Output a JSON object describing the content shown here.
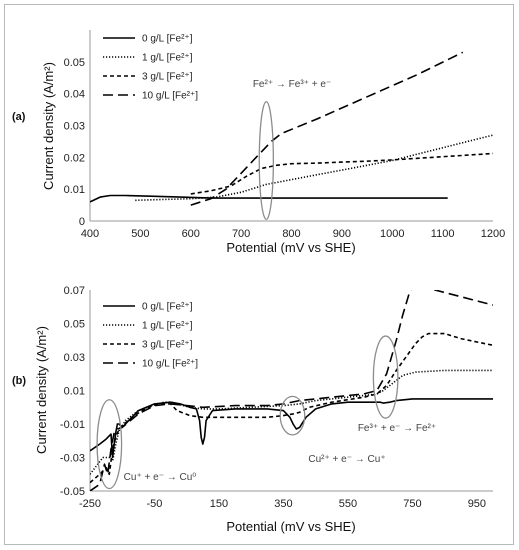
{
  "chart_data": [
    {
      "type": "line",
      "panel_label": "(a)",
      "xlabel": "Potential (mV vs SHE)",
      "ylabel": "Current density (A/m²)",
      "xlim": [
        400,
        1200
      ],
      "ylim": [
        0,
        0.06
      ],
      "xticks": [
        400,
        500,
        600,
        700,
        800,
        900,
        1000,
        1100,
        1200
      ],
      "yticks": [
        "0",
        "0.01",
        "0.02",
        "0.03",
        "0.04",
        "0.05"
      ],
      "ytick_values": [
        0,
        0.01,
        0.02,
        0.03,
        0.04,
        0.05
      ],
      "grid": false,
      "legend_position": "top-left",
      "series": [
        {
          "name": "0 g/L [Fe²⁺]",
          "dash": "solid",
          "x": [
            400,
            420,
            440,
            470,
            520,
            580,
            640,
            700,
            800,
            900,
            1000,
            1110
          ],
          "y": [
            0.006,
            0.0075,
            0.008,
            0.008,
            0.0078,
            0.0075,
            0.0072,
            0.0072,
            0.0072,
            0.0072,
            0.0072,
            0.0072
          ]
        },
        {
          "name": "1 g/L [Fe²⁺]",
          "dash": "dotted",
          "x": [
            490,
            550,
            600,
            650,
            700,
            750,
            800,
            850,
            900,
            950,
            1000,
            1050,
            1100,
            1150,
            1200
          ],
          "y": [
            0.0065,
            0.0068,
            0.007,
            0.0075,
            0.009,
            0.0115,
            0.013,
            0.0145,
            0.016,
            0.0175,
            0.019,
            0.021,
            0.023,
            0.025,
            0.027
          ]
        },
        {
          "name": "3 g/L [Fe²⁺]",
          "dash": "short-dash",
          "x": [
            600,
            640,
            680,
            710,
            740,
            770,
            800,
            850,
            900,
            950,
            1000,
            1050,
            1100,
            1150,
            1200
          ],
          "y": [
            0.0085,
            0.0095,
            0.011,
            0.014,
            0.0165,
            0.0175,
            0.018,
            0.0182,
            0.0185,
            0.0188,
            0.0192,
            0.0197,
            0.0202,
            0.0207,
            0.0212
          ]
        },
        {
          "name": "10 g/L [Fe²⁺]",
          "dash": "long-dash",
          "x": [
            600,
            640,
            670,
            700,
            730,
            760,
            780,
            850,
            950,
            1050,
            1140
          ],
          "y": [
            0.005,
            0.007,
            0.01,
            0.015,
            0.02,
            0.025,
            0.0275,
            0.032,
            0.039,
            0.046,
            0.053
          ]
        }
      ],
      "annotations": [
        {
          "text": "Fe²⁺ → Fe³⁺ + e⁻",
          "ellipse_center": [
            750,
            0.019
          ],
          "ellipse_radius": [
            14,
            0.0185
          ]
        }
      ]
    },
    {
      "type": "line",
      "panel_label": "(b)",
      "xlabel": "Potential (mV vs SHE)",
      "ylabel": "Current density (A/m²)",
      "xlim": [
        -250,
        1000
      ],
      "ylim": [
        -0.05,
        0.07
      ],
      "xticks": [
        "-250",
        "-50",
        "150",
        "350",
        "550",
        "750",
        "950"
      ],
      "xtick_values": [
        -250,
        -50,
        150,
        350,
        550,
        750,
        950
      ],
      "yticks": [
        "-0.05",
        "-0.03",
        "-0.01",
        "0.01",
        "0.03",
        "0.05",
        "0.07"
      ],
      "ytick_values": [
        -0.05,
        -0.03,
        -0.01,
        0.01,
        0.03,
        0.05,
        0.07
      ],
      "grid": false,
      "legend_position": "top-left",
      "series": [
        {
          "name": "0 g/L [Fe²⁺]",
          "dash": "solid",
          "x": [
            -250,
            -220,
            -200,
            -185,
            -180,
            -175,
            -170,
            -165,
            -160,
            -155,
            -150,
            -120,
            -100,
            -50,
            0,
            30,
            60,
            80,
            90,
            95,
            100,
            105,
            110,
            130,
            200,
            300,
            350,
            370,
            380,
            390,
            400,
            420,
            450,
            500,
            550,
            600,
            650,
            660,
            680,
            700,
            750,
            800,
            850,
            900,
            1000
          ],
          "y": [
            -0.026,
            -0.022,
            -0.019,
            -0.016,
            -0.03,
            -0.022,
            -0.015,
            -0.01,
            -0.01,
            -0.011,
            -0.012,
            -0.006,
            -0.002,
            0.002,
            0.003,
            0.002,
            0.0,
            -0.001,
            -0.008,
            -0.018,
            -0.022,
            -0.018,
            -0.008,
            -0.002,
            -0.001,
            -0.001,
            -0.002,
            -0.006,
            -0.01,
            -0.013,
            -0.012,
            -0.006,
            -0.001,
            0.002,
            0.003,
            0.003,
            0.003,
            0.0025,
            0.003,
            0.004,
            0.005,
            0.005,
            0.005,
            0.005,
            0.005
          ]
        },
        {
          "name": "1 g/L [Fe²⁺]",
          "dash": "dotted",
          "x": [
            -250,
            -210,
            -190,
            -180,
            -170,
            -160,
            -140,
            -100,
            -60,
            -20,
            0,
            20,
            60,
            100,
            150,
            250,
            350,
            400,
            450,
            500,
            550,
            600,
            640,
            660,
            680,
            700,
            720,
            760,
            850,
            1000
          ],
          "y": [
            -0.04,
            -0.03,
            -0.03,
            -0.032,
            -0.022,
            -0.014,
            -0.008,
            -0.002,
            0.001,
            0.003,
            0.003,
            0.002,
            0.0,
            -0.001,
            -0.001,
            0.0,
            0.001,
            0.002,
            0.004,
            0.005,
            0.006,
            0.007,
            0.008,
            0.01,
            0.013,
            0.016,
            0.019,
            0.021,
            0.022,
            0.022
          ]
        },
        {
          "name": "3 g/L [Fe²⁺]",
          "dash": "short-dash",
          "x": [
            -250,
            -220,
            -200,
            -190,
            -180,
            -170,
            -160,
            -150,
            -120,
            -80,
            -40,
            0,
            20,
            60,
            100,
            200,
            300,
            350,
            380,
            400,
            430,
            500,
            600,
            640,
            670,
            700,
            730,
            760,
            780,
            800,
            850,
            900,
            1000
          ],
          "y": [
            -0.045,
            -0.04,
            -0.036,
            -0.04,
            -0.025,
            -0.018,
            -0.013,
            -0.011,
            -0.006,
            -0.001,
            0.002,
            0.002,
            -0.002,
            -0.005,
            -0.006,
            -0.006,
            -0.006,
            -0.005,
            -0.004,
            -0.003,
            0.0,
            0.003,
            0.006,
            0.008,
            0.013,
            0.022,
            0.03,
            0.038,
            0.042,
            0.044,
            0.044,
            0.041,
            0.037
          ]
        },
        {
          "name": "10 g/L [Fe²⁺]",
          "dash": "long-dash",
          "x": [
            -250,
            -220,
            -205,
            -195,
            -185,
            -175,
            -165,
            -150,
            -100,
            -50,
            0,
            50,
            100,
            200,
            300,
            350,
            400,
            450,
            500,
            550,
            600,
            640,
            670,
            700,
            720,
            740,
            760,
            800,
            900,
            1000
          ],
          "y": [
            -0.05,
            -0.046,
            -0.034,
            -0.04,
            -0.025,
            -0.015,
            -0.013,
            -0.012,
            -0.004,
            0.001,
            0.002,
            0.001,
            0.0,
            0.001,
            0.001,
            0.002,
            0.004,
            0.005,
            0.006,
            0.007,
            0.008,
            0.01,
            0.02,
            0.04,
            0.055,
            0.068,
            0.075,
            0.071,
            0.066,
            0.061
          ]
        }
      ],
      "annotations": [
        {
          "text": "Cu⁺ + e⁻ → Cu⁰",
          "ellipse_center": [
            -190,
            -0.022
          ],
          "ellipse_radius": [
            38,
            0.0265
          ]
        },
        {
          "text": "Cu²⁺ + e⁻ → Cu⁺",
          "ellipse_center": [
            378,
            -0.005
          ],
          "ellipse_radius": [
            38,
            0.0115
          ]
        },
        {
          "text": "Fe³⁺ + e⁻ → Fe²⁺",
          "ellipse_center": [
            667,
            0.018
          ],
          "ellipse_radius": [
            38,
            0.0245
          ]
        }
      ]
    }
  ]
}
